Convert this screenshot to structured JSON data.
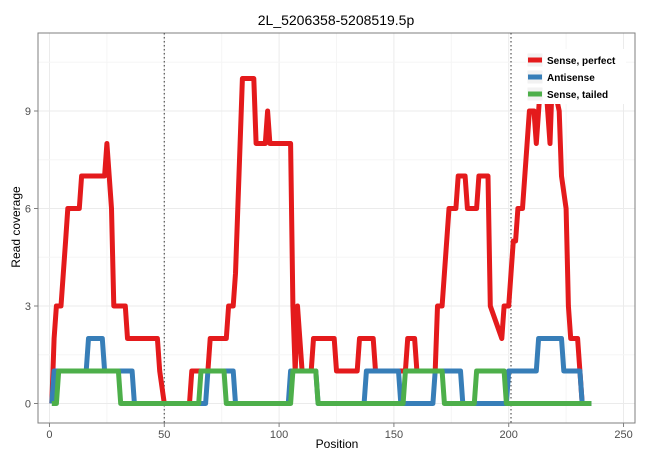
{
  "chart_data": {
    "type": "line",
    "title": "2L_5206358-5208519.5p",
    "xlabel": "Position",
    "ylabel": "Read coverage",
    "xlim": [
      -5,
      255
    ],
    "ylim": [
      -0.6,
      11.4
    ],
    "xticks": [
      0,
      50,
      100,
      150,
      200,
      250
    ],
    "yticks": [
      0,
      3,
      6,
      9
    ],
    "grid": true,
    "legend": {
      "placement": "top-right"
    },
    "vlines": [
      50,
      201
    ],
    "series": [
      {
        "name": "Sense, perfect",
        "color": "#E41A1C",
        "points": [
          [
            1,
            0
          ],
          [
            2,
            2
          ],
          [
            3,
            3
          ],
          [
            5,
            3
          ],
          [
            6,
            4
          ],
          [
            7,
            5
          ],
          [
            8,
            6
          ],
          [
            13,
            6
          ],
          [
            14,
            7
          ],
          [
            24,
            7
          ],
          [
            25,
            8
          ],
          [
            26,
            7
          ],
          [
            27,
            6
          ],
          [
            28,
            3
          ],
          [
            33,
            3
          ],
          [
            34,
            2
          ],
          [
            47,
            2
          ],
          [
            48,
            1
          ],
          [
            50,
            0
          ],
          [
            61,
            0
          ],
          [
            62,
            1
          ],
          [
            69,
            1
          ],
          [
            70,
            2
          ],
          [
            77,
            2
          ],
          [
            78,
            3
          ],
          [
            80,
            3
          ],
          [
            81,
            4
          ],
          [
            82,
            6
          ],
          [
            83,
            8
          ],
          [
            84,
            10
          ],
          [
            89,
            10
          ],
          [
            90,
            8
          ],
          [
            94,
            8
          ],
          [
            95,
            9
          ],
          [
            96,
            8
          ],
          [
            105,
            8
          ],
          [
            106,
            3
          ],
          [
            107,
            1
          ],
          [
            108,
            3
          ],
          [
            109,
            2
          ],
          [
            110,
            1
          ],
          [
            114,
            1
          ],
          [
            115,
            2
          ],
          [
            124,
            2
          ],
          [
            125,
            1
          ],
          [
            134,
            1
          ],
          [
            135,
            2
          ],
          [
            141,
            2
          ],
          [
            142,
            1
          ],
          [
            155,
            1
          ],
          [
            156,
            2
          ],
          [
            159,
            2
          ],
          [
            160,
            1
          ],
          [
            168,
            1
          ],
          [
            169,
            3
          ],
          [
            171,
            3
          ],
          [
            172,
            4
          ],
          [
            174,
            6
          ],
          [
            177,
            6
          ],
          [
            178,
            7
          ],
          [
            181,
            7
          ],
          [
            182,
            6
          ],
          [
            186,
            6
          ],
          [
            187,
            7
          ],
          [
            191,
            7
          ],
          [
            192,
            3
          ],
          [
            197,
            2
          ],
          [
            198,
            3
          ],
          [
            200,
            3
          ],
          [
            201,
            4
          ],
          [
            202,
            5
          ],
          [
            203,
            5
          ],
          [
            204,
            6
          ],
          [
            206,
            6
          ],
          [
            207,
            7
          ],
          [
            208,
            8
          ],
          [
            209,
            9
          ],
          [
            211,
            9
          ],
          [
            212,
            8
          ],
          [
            214,
            10
          ],
          [
            216,
            10
          ],
          [
            217,
            9
          ],
          [
            218,
            8
          ],
          [
            219,
            10
          ],
          [
            222,
            9
          ],
          [
            223,
            7
          ],
          [
            225,
            6
          ],
          [
            226,
            3
          ],
          [
            227,
            2
          ],
          [
            230,
            2
          ],
          [
            231,
            1
          ],
          [
            232,
            0
          ],
          [
            236,
            0
          ]
        ]
      },
      {
        "name": "Antisense",
        "color": "#377EB8",
        "points": [
          [
            1,
            0
          ],
          [
            2,
            1
          ],
          [
            16,
            1
          ],
          [
            17,
            2
          ],
          [
            23,
            2
          ],
          [
            24,
            1
          ],
          [
            36,
            1
          ],
          [
            37,
            0
          ],
          [
            68,
            0
          ],
          [
            69,
            1
          ],
          [
            80,
            1
          ],
          [
            81,
            0
          ],
          [
            104,
            0
          ],
          [
            105,
            1
          ],
          [
            116,
            1
          ],
          [
            117,
            0
          ],
          [
            137,
            0
          ],
          [
            138,
            1
          ],
          [
            152,
            1
          ],
          [
            153,
            0
          ],
          [
            167,
            0
          ],
          [
            168,
            1
          ],
          [
            179,
            1
          ],
          [
            180,
            0
          ],
          [
            199,
            0
          ],
          [
            200,
            1
          ],
          [
            212,
            1
          ],
          [
            213,
            2
          ],
          [
            223,
            2
          ],
          [
            224,
            1
          ],
          [
            231,
            1
          ],
          [
            232,
            0
          ],
          [
            236,
            0
          ]
        ]
      },
      {
        "name": "Sense, tailed",
        "color": "#4DAF4A",
        "points": [
          [
            1,
            0
          ],
          [
            3,
            0
          ],
          [
            4,
            1
          ],
          [
            30,
            1
          ],
          [
            31,
            0
          ],
          [
            65,
            0
          ],
          [
            66,
            1
          ],
          [
            76,
            1
          ],
          [
            77,
            0
          ],
          [
            105,
            0
          ],
          [
            106,
            1
          ],
          [
            116,
            1
          ],
          [
            117,
            0
          ],
          [
            154,
            0
          ],
          [
            155,
            1
          ],
          [
            171,
            1
          ],
          [
            172,
            0
          ],
          [
            185,
            0
          ],
          [
            186,
            1
          ],
          [
            198,
            1
          ],
          [
            199,
            0
          ],
          [
            236,
            0
          ]
        ]
      }
    ]
  }
}
